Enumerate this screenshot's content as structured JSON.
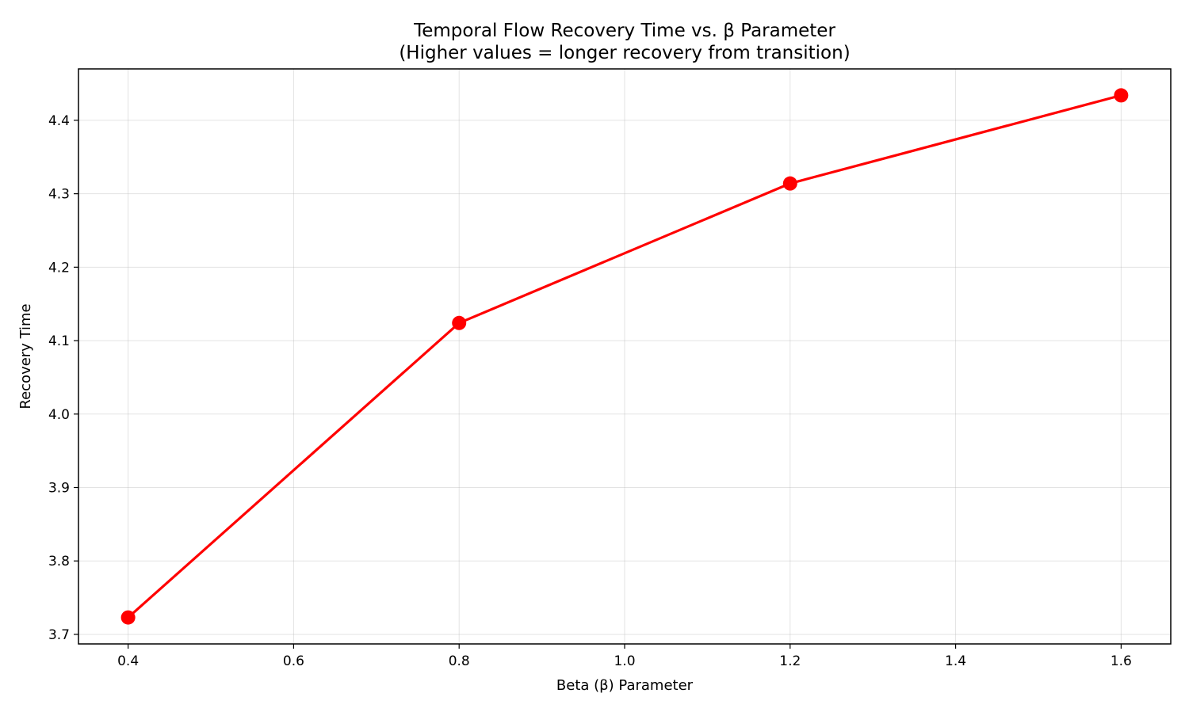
{
  "chart_data": {
    "type": "line",
    "title": "Temporal Flow Recovery Time vs. β Parameter",
    "subtitle": "(Higher values = longer recovery from transition)",
    "xlabel": "Beta (β) Parameter",
    "ylabel": "Recovery Time",
    "xlim": [
      0.34,
      1.66
    ],
    "ylim": [
      3.687,
      4.47
    ],
    "x_ticks": [
      0.4,
      0.6,
      0.8,
      1.0,
      1.2,
      1.4,
      1.6
    ],
    "x_tick_labels": [
      "0.4",
      "0.6",
      "0.8",
      "1.0",
      "1.2",
      "1.4",
      "1.6"
    ],
    "y_ticks": [
      3.7,
      3.8,
      3.9,
      4.0,
      4.1,
      4.2,
      4.3,
      4.4
    ],
    "y_tick_labels": [
      "3.7",
      "3.8",
      "3.9",
      "4.0",
      "4.1",
      "4.2",
      "4.3",
      "4.4"
    ],
    "grid": true,
    "series": [
      {
        "x": [
          0.4,
          0.8,
          1.2,
          1.6
        ],
        "y": [
          3.723,
          4.124,
          4.314,
          4.434
        ],
        "color": "#ff0000",
        "marker": "circle"
      }
    ]
  }
}
